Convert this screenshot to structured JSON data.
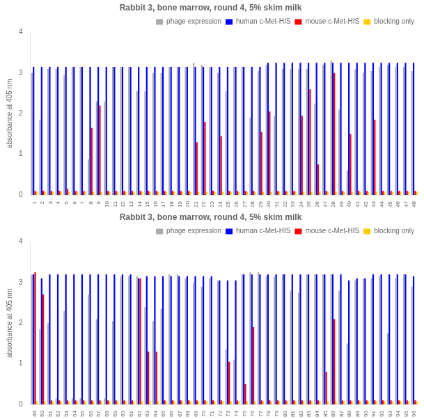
{
  "chart_data": [
    {
      "type": "bar",
      "title": "Rabbit 3, bone marrow, round 4, 5% skim milk",
      "ylabel": "absorbance at 405 nm",
      "categories": [
        "1",
        "2",
        "3",
        "4",
        "5",
        "6",
        "7",
        "8",
        "9",
        "10",
        "11",
        "12",
        "13",
        "14",
        "15",
        "16",
        "17",
        "18",
        "19",
        "20",
        "21",
        "22",
        "23",
        "24",
        "25",
        "26",
        "27",
        "28",
        "29",
        "30",
        "31",
        "32",
        "33",
        "34",
        "35",
        "36",
        "37",
        "38",
        "39",
        "40",
        "41",
        "42",
        "43",
        "44",
        "45",
        "46",
        "47",
        "48"
      ],
      "series": [
        {
          "name": "phage expression",
          "color": "#aaaaaa",
          "values": [
            3.0,
            1.85,
            3.1,
            3.1,
            2.95,
            3.15,
            3.15,
            0.88,
            2.3,
            2.3,
            3.15,
            3.15,
            3.15,
            2.55,
            2.55,
            3.0,
            3.0,
            3.15,
            3.15,
            3.15,
            3.25,
            3.2,
            3.15,
            3.0,
            2.55,
            3.15,
            3.15,
            1.9,
            3.05,
            3.2,
            1.95,
            3.1,
            3.1,
            3.1,
            3.1,
            2.25,
            3.2,
            3.3,
            2.1,
            0.6,
            3.1,
            3.0,
            3.05,
            3.15,
            3.2,
            3.15,
            3.15,
            3.05
          ]
        },
        {
          "name": "human c-Met-HIS",
          "color": "#0000ff",
          "values": [
            3.15,
            3.15,
            3.15,
            3.15,
            3.15,
            3.15,
            3.15,
            3.15,
            3.15,
            3.15,
            3.15,
            3.15,
            3.15,
            3.15,
            3.15,
            3.15,
            3.15,
            3.15,
            3.15,
            3.15,
            3.15,
            3.15,
            3.15,
            3.15,
            3.15,
            3.15,
            3.15,
            3.15,
            3.15,
            3.25,
            3.25,
            3.25,
            3.25,
            3.25,
            3.25,
            3.25,
            3.25,
            3.25,
            3.25,
            3.25,
            3.25,
            3.25,
            3.25,
            3.25,
            3.25,
            3.25,
            3.25,
            3.25
          ]
        },
        {
          "name": "mouse c-Met-HIS",
          "color": "#ff0000",
          "values": [
            0.1,
            0.1,
            0.1,
            0.1,
            0.15,
            0.1,
            0.1,
            1.65,
            2.2,
            0.1,
            0.1,
            0.1,
            0.1,
            0.1,
            0.1,
            0.1,
            0.1,
            0.1,
            0.1,
            0.1,
            1.3,
            1.8,
            0.1,
            1.45,
            0.1,
            0.1,
            0.1,
            0.1,
            1.55,
            2.05,
            0.1,
            0.1,
            0.1,
            1.95,
            2.6,
            0.75,
            0.1,
            3.0,
            0.1,
            1.5,
            0.1,
            0.1,
            1.85,
            0.1,
            0.1,
            0.1,
            0.1,
            0.1
          ]
        },
        {
          "name": "blocking only",
          "color": "#ffcc00",
          "values": [
            0.08,
            0.08,
            0.08,
            0.08,
            0.08,
            0.08,
            0.08,
            0.08,
            0.08,
            0.08,
            0.08,
            0.08,
            0.08,
            0.08,
            0.08,
            0.08,
            0.08,
            0.08,
            0.08,
            0.08,
            0.08,
            0.08,
            0.08,
            0.08,
            0.08,
            0.08,
            0.08,
            0.08,
            0.08,
            0.08,
            0.08,
            0.08,
            0.08,
            0.08,
            0.08,
            0.08,
            0.08,
            0.08,
            0.08,
            0.08,
            0.08,
            0.08,
            0.08,
            0.08,
            0.08,
            0.08,
            0.08,
            0.08
          ]
        }
      ],
      "ylim": [
        0,
        4
      ],
      "yticks": [
        0,
        1,
        2,
        3,
        4
      ],
      "grid": false,
      "legend": "upper right"
    },
    {
      "type": "bar",
      "title": "Rabbit 3, bone marrow, round 4, 5% skim milk",
      "ylabel": "absorbance at 405 nm",
      "categories": [
        "49",
        "50",
        "51",
        "52",
        "53",
        "54",
        "55",
        "56",
        "57",
        "58",
        "59",
        "60",
        "61",
        "62",
        "63",
        "64",
        "65",
        "66",
        "67",
        "68",
        "69",
        "70",
        "71",
        "72",
        "73",
        "74",
        "75",
        "76",
        "77",
        "78",
        "79",
        "80",
        "81",
        "82",
        "83",
        "84",
        "85",
        "86",
        "87",
        "88",
        "89",
        "90",
        "91",
        "92",
        "93",
        "94",
        "95",
        "96"
      ],
      "series": [
        {
          "name": "phage expression",
          "color": "#aaaaaa",
          "values": [
            3.2,
            1.85,
            2.0,
            0.15,
            2.3,
            0.15,
            0.15,
            2.7,
            2.1,
            0.15,
            2.05,
            3.15,
            3.15,
            3.15,
            2.4,
            2.05,
            2.35,
            3.2,
            3.2,
            3.1,
            3.0,
            2.9,
            3.1,
            3.05,
            1.35,
            1.1,
            3.2,
            3.25,
            3.25,
            3.15,
            3.15,
            3.2,
            2.8,
            2.75,
            3.2,
            3.2,
            3.2,
            3.2,
            2.8,
            1.5,
            3.05,
            3.1,
            3.1,
            3.15,
            1.75,
            3.1,
            3.2,
            2.9
          ]
        },
        {
          "name": "human c-Met-HIS",
          "color": "#0000ff",
          "values": [
            3.2,
            3.1,
            3.2,
            3.2,
            3.2,
            3.2,
            3.2,
            3.2,
            3.2,
            3.2,
            3.2,
            3.2,
            3.2,
            3.1,
            3.15,
            3.15,
            3.15,
            3.15,
            3.15,
            3.15,
            3.15,
            3.15,
            3.15,
            3.05,
            3.05,
            3.05,
            3.2,
            3.2,
            3.2,
            3.2,
            3.2,
            3.2,
            3.2,
            3.2,
            3.2,
            3.2,
            3.2,
            3.2,
            3.2,
            3.05,
            3.1,
            3.1,
            3.2,
            3.2,
            3.2,
            3.2,
            3.2,
            3.15
          ]
        },
        {
          "name": "mouse c-Met-HIS",
          "color": "#ff0000",
          "values": [
            3.25,
            2.7,
            0.1,
            0.1,
            0.1,
            0.1,
            0.1,
            0.1,
            0.1,
            0.1,
            0.1,
            0.1,
            0.1,
            3.1,
            1.3,
            1.3,
            0.1,
            0.1,
            0.1,
            0.1,
            0.1,
            0.1,
            0.1,
            0.1,
            1.05,
            0.1,
            0.5,
            1.9,
            0.1,
            0.1,
            0.1,
            0.1,
            0.1,
            0.1,
            0.1,
            0.1,
            0.8,
            2.1,
            0.1,
            0.1,
            0.1,
            0.1,
            0.1,
            0.1,
            0.1,
            0.1,
            0.1,
            0.1
          ]
        },
        {
          "name": "blocking only",
          "color": "#ffcc00",
          "values": [
            0.08,
            0.08,
            0.08,
            0.08,
            0.08,
            0.08,
            0.08,
            0.08,
            0.08,
            0.08,
            0.08,
            0.08,
            0.08,
            0.08,
            0.08,
            0.08,
            0.08,
            0.08,
            0.08,
            0.08,
            0.08,
            0.08,
            0.08,
            0.08,
            0.08,
            0.08,
            0.08,
            0.08,
            0.08,
            0.08,
            0.08,
            0.08,
            0.08,
            0.08,
            0.08,
            0.08,
            0.08,
            0.08,
            0.08,
            0.08,
            0.08,
            0.08,
            0.08,
            0.08,
            0.08,
            0.08,
            0.08,
            0.08
          ]
        }
      ],
      "ylim": [
        0,
        4
      ],
      "yticks": [
        0,
        1,
        2,
        3,
        4
      ],
      "grid": false,
      "legend": "upper right"
    }
  ]
}
